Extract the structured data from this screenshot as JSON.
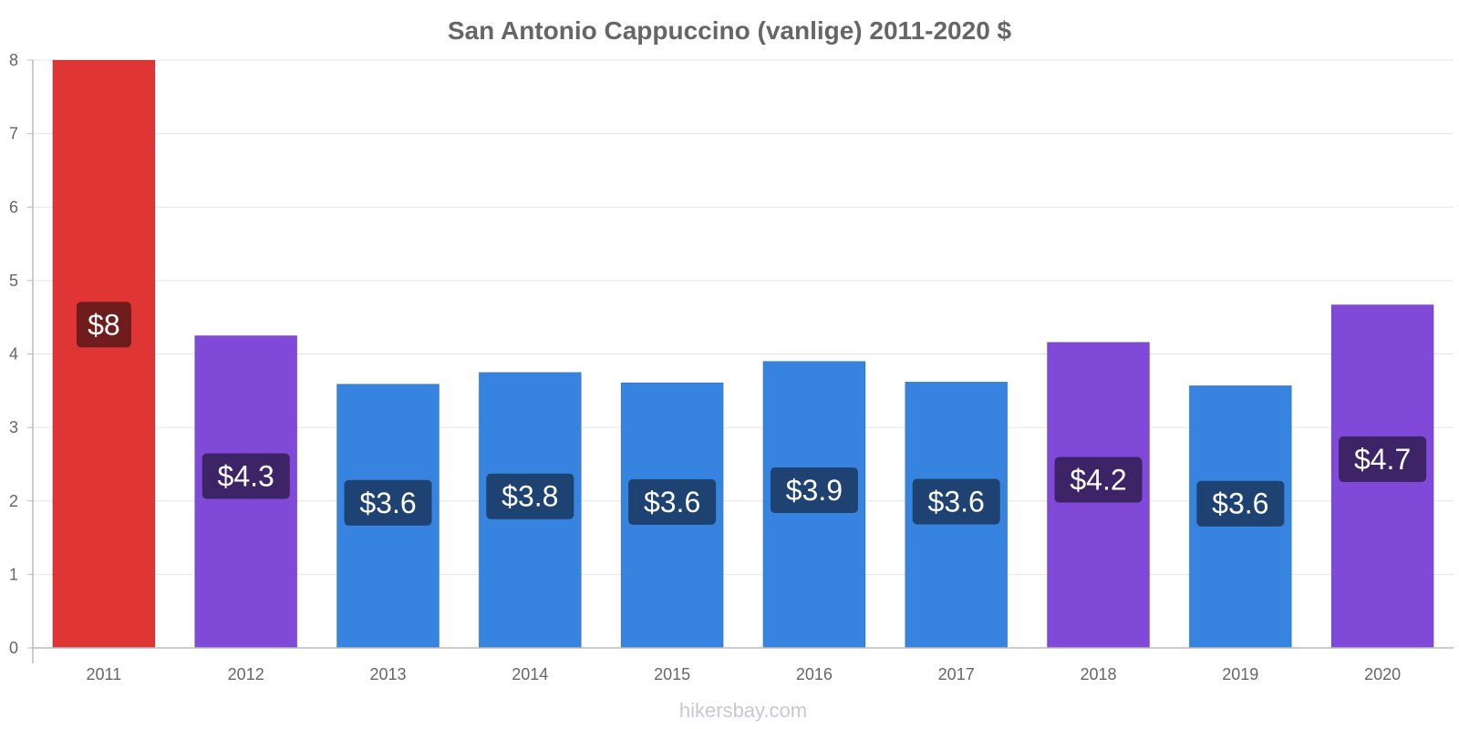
{
  "chart_data": {
    "type": "bar",
    "title": "San Antonio Cappuccino (vanlige) 2011-2020 $",
    "xlabel": "",
    "ylabel": "",
    "ylim": [
      0,
      8
    ],
    "yticks": [
      "0",
      "1",
      "2",
      "3",
      "4",
      "5",
      "6",
      "7",
      "8"
    ],
    "categories": [
      "2011",
      "2012",
      "2013",
      "2014",
      "2015",
      "2016",
      "2017",
      "2018",
      "2019",
      "2020"
    ],
    "values": [
      8.0,
      4.25,
      3.59,
      3.75,
      3.61,
      3.9,
      3.62,
      4.16,
      3.57,
      4.67
    ],
    "labels": [
      "$8",
      "$4.3",
      "$3.6",
      "$3.8",
      "$3.6",
      "$3.9",
      "$3.6",
      "$4.2",
      "$3.6",
      "$4.7"
    ],
    "bar_colors": [
      "#e03535",
      "#8049d8",
      "#3684df",
      "#3684df",
      "#3684df",
      "#3684df",
      "#3684df",
      "#8049d8",
      "#3684df",
      "#8049d8"
    ],
    "label_box_colors": [
      "#6e1c1c",
      "#3c2466",
      "#1e4272",
      "#1e4272",
      "#1e4272",
      "#1e4272",
      "#1e4272",
      "#3c2466",
      "#1e4272",
      "#3c2466"
    ],
    "grid": true,
    "legend": "none"
  },
  "watermark": "hikersbay.com"
}
